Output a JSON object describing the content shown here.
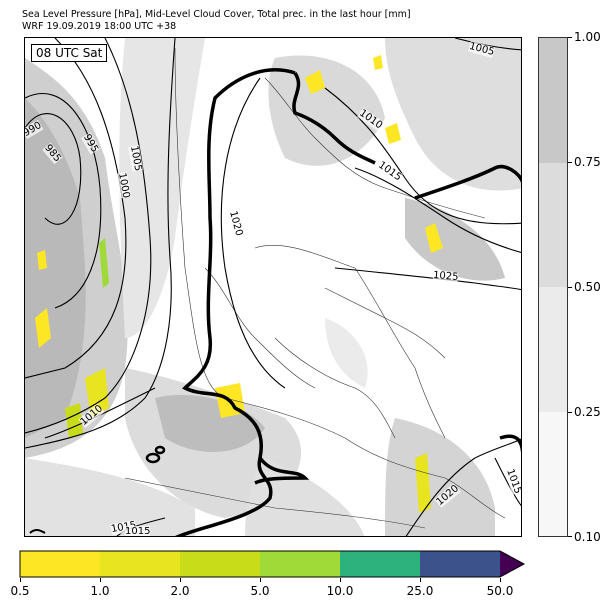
{
  "header": {
    "line1": "Sea Level Pressure [hPa], Mid-Level Cloud Cover, Total prec. in the last hour [mm]",
    "line2": "WRF 19.09.2019 18:00 UTC +38"
  },
  "map": {
    "time_label": "08 UTC Sat",
    "isobar_labels": [
      "990",
      "985",
      "995",
      "1000",
      "1005",
      "1005",
      "1010",
      "1015",
      "1020",
      "1025",
      "1010",
      "1015",
      "1020",
      "1015",
      "1015"
    ]
  },
  "cloud_colorbar": {
    "ticks": [
      "1.00",
      "0.75",
      "0.50",
      "0.25",
      "0.10"
    ],
    "colors": [
      "#c8c8c8",
      "#dcdcdc",
      "#ebebeb",
      "#f7f7f7"
    ]
  },
  "precip_colorbar": {
    "ticks": [
      "0.5",
      "1.0",
      "2.0",
      "5.0",
      "10.0",
      "25.0",
      "50.0"
    ],
    "colors": [
      "#fde725",
      "#e8e41f",
      "#c8dc1a",
      "#a0da39",
      "#2db27d",
      "#3b528b",
      "#440154"
    ]
  }
}
